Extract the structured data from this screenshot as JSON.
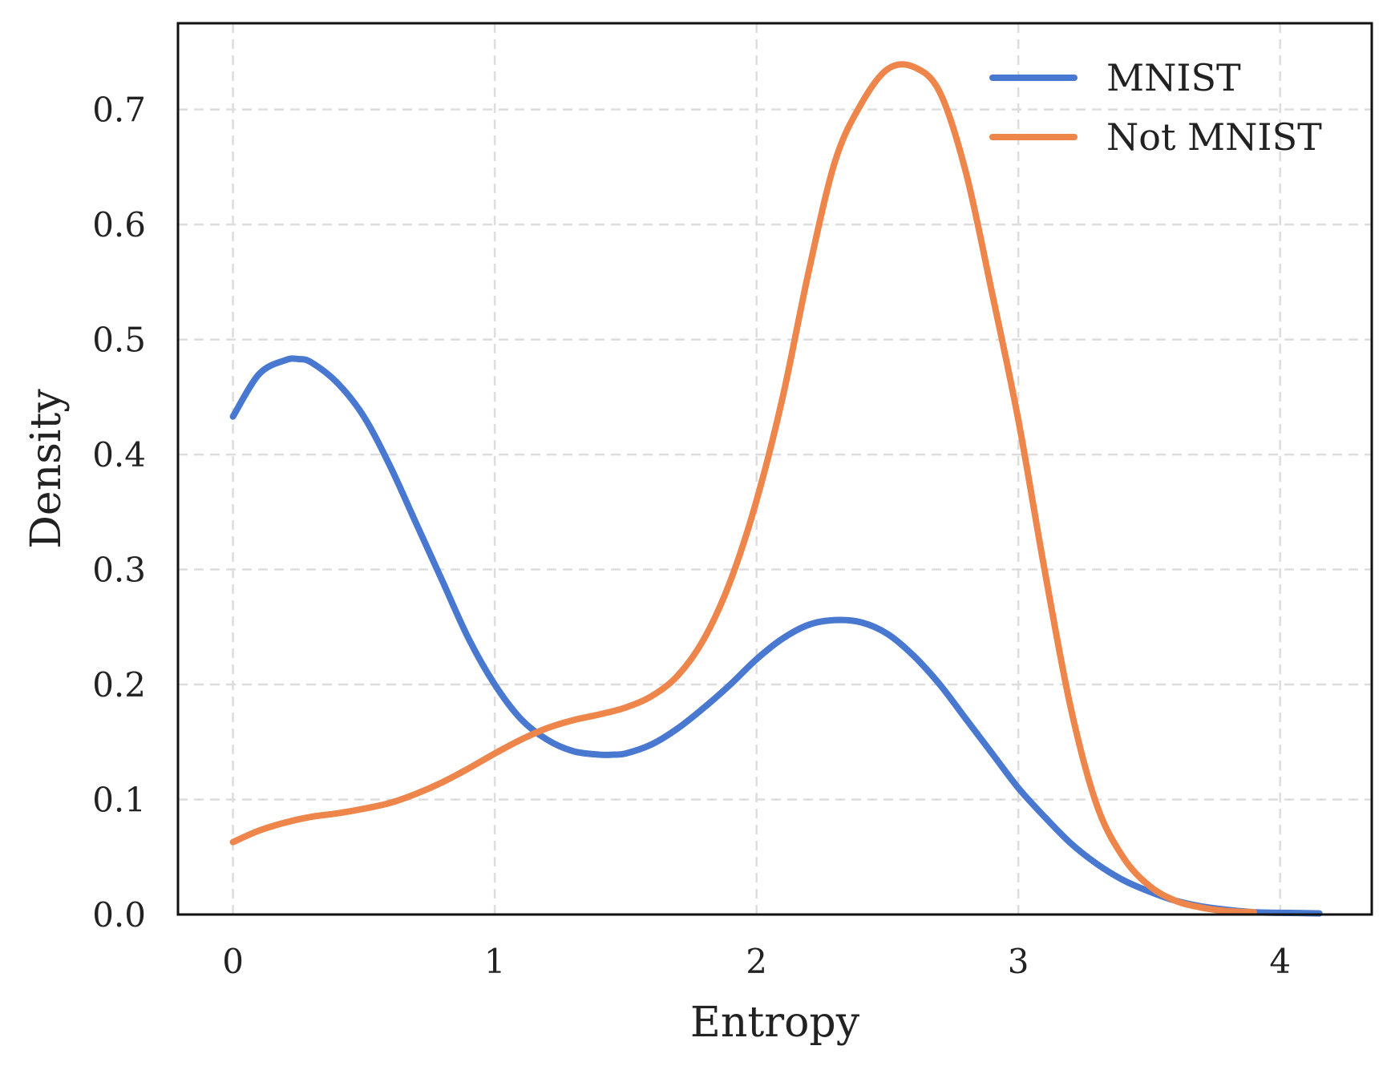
{
  "chart_data": {
    "type": "line",
    "title": "",
    "xlabel": "Entropy",
    "ylabel": "Density",
    "xlim": [
      -0.21,
      4.35
    ],
    "ylim": [
      0.0,
      0.775
    ],
    "xticks": [
      "0",
      "1",
      "2",
      "3",
      "4"
    ],
    "yticks": [
      "0.0",
      "0.1",
      "0.2",
      "0.3",
      "0.4",
      "0.5",
      "0.6",
      "0.7"
    ],
    "grid": true,
    "legend_position": "top-right",
    "series": [
      {
        "name": "MNIST",
        "color": "#4878d0",
        "x": [
          0.0,
          0.1,
          0.2,
          0.25,
          0.3,
          0.4,
          0.5,
          0.6,
          0.7,
          0.8,
          0.9,
          1.0,
          1.1,
          1.2,
          1.3,
          1.4,
          1.45,
          1.5,
          1.6,
          1.7,
          1.8,
          1.9,
          2.0,
          2.1,
          2.2,
          2.3,
          2.4,
          2.5,
          2.6,
          2.7,
          2.8,
          2.9,
          3.0,
          3.1,
          3.2,
          3.3,
          3.4,
          3.5,
          3.6,
          3.7,
          3.8,
          3.9,
          4.0,
          4.15
        ],
        "y": [
          0.433,
          0.47,
          0.482,
          0.483,
          0.48,
          0.462,
          0.433,
          0.39,
          0.34,
          0.29,
          0.24,
          0.2,
          0.17,
          0.152,
          0.142,
          0.139,
          0.139,
          0.14,
          0.148,
          0.162,
          0.18,
          0.2,
          0.222,
          0.24,
          0.252,
          0.256,
          0.254,
          0.244,
          0.225,
          0.2,
          0.17,
          0.14,
          0.11,
          0.085,
          0.062,
          0.044,
          0.03,
          0.02,
          0.012,
          0.007,
          0.004,
          0.002,
          0.0015,
          0.001
        ]
      },
      {
        "name": "Not MNIST",
        "color": "#ee854a",
        "x": [
          0.0,
          0.1,
          0.2,
          0.3,
          0.4,
          0.5,
          0.6,
          0.7,
          0.8,
          0.9,
          1.0,
          1.1,
          1.2,
          1.3,
          1.4,
          1.5,
          1.6,
          1.7,
          1.8,
          1.9,
          2.0,
          2.1,
          2.2,
          2.3,
          2.4,
          2.5,
          2.6,
          2.7,
          2.8,
          2.9,
          3.0,
          3.1,
          3.2,
          3.3,
          3.4,
          3.5,
          3.6,
          3.7,
          3.8,
          3.9
        ],
        "y": [
          0.063,
          0.073,
          0.08,
          0.085,
          0.088,
          0.092,
          0.097,
          0.105,
          0.115,
          0.127,
          0.14,
          0.152,
          0.162,
          0.169,
          0.174,
          0.18,
          0.19,
          0.208,
          0.24,
          0.29,
          0.36,
          0.45,
          0.56,
          0.655,
          0.705,
          0.735,
          0.737,
          0.715,
          0.645,
          0.54,
          0.43,
          0.3,
          0.18,
          0.095,
          0.05,
          0.025,
          0.012,
          0.006,
          0.003,
          0.002
        ]
      }
    ]
  }
}
